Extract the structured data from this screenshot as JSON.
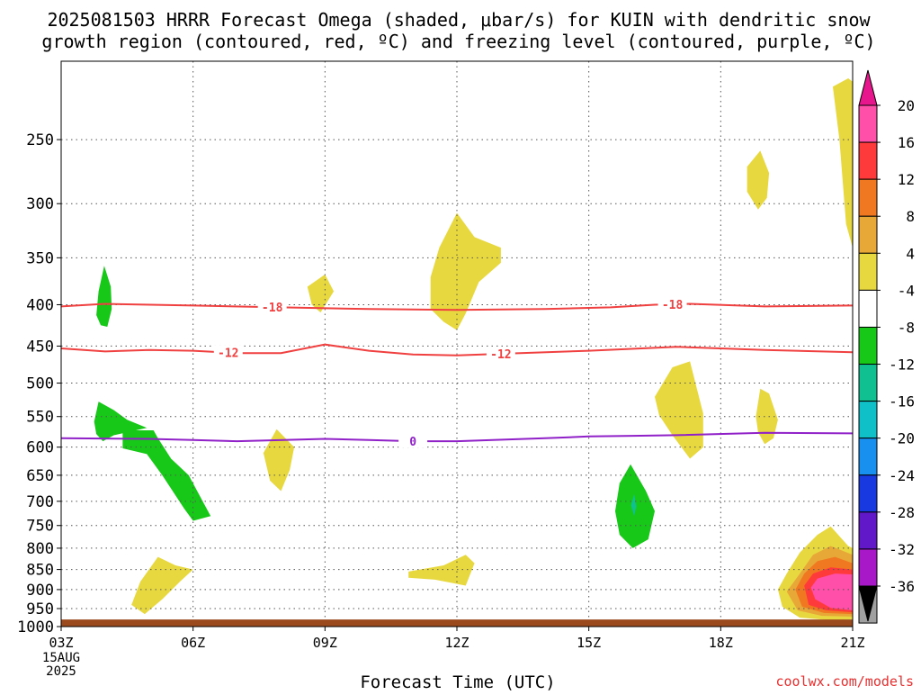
{
  "chart_data": {
    "type": "heatmap",
    "title_line1": "2025081503 HRRR Forecast Omega (shaded, μbar/s) for KUIN with dendritic snow",
    "title_line2": "growth region (contoured, red, ºC) and freezing level (contoured, purple, ºC)",
    "xlabel": "Forecast Time (UTC)",
    "ylabel": "",
    "credit": "coolwx.com/models",
    "x_ticks": [
      "03Z",
      "06Z",
      "09Z",
      "12Z",
      "15Z",
      "18Z",
      "21Z"
    ],
    "x_tick_hours": [
      3,
      6,
      9,
      12,
      15,
      18,
      21
    ],
    "x_date_lines": [
      "15AUG",
      "2025"
    ],
    "xlim_hours": [
      3,
      21
    ],
    "y_ticks": [
      250,
      300,
      350,
      400,
      450,
      500,
      550,
      600,
      650,
      700,
      750,
      800,
      850,
      900,
      950,
      1000
    ],
    "ylim_hPa": [
      1000,
      200
    ],
    "y_scale": "log-pressure",
    "grid": true,
    "ground_color": "#9b4a1e",
    "ground_top_hPa": 980,
    "colorbar": {
      "labels": [
        20,
        16,
        12,
        8,
        4,
        -4,
        -8,
        -12,
        -16,
        -20,
        -24,
        -28,
        -32,
        -36
      ],
      "colors": [
        "#ff4fa8",
        "#ff3a3a",
        "#f07820",
        "#e8a838",
        "#e8d840",
        "#ffffff",
        "#18c818",
        "#10c090",
        "#10c0c8",
        "#1890f0",
        "#1838e0",
        "#6018c8",
        "#a818c8",
        "#a0a0a0"
      ],
      "top_cap_color": "#e8168c",
      "bottom_cap_color": "#000000"
    },
    "contours": [
      {
        "label": "-18",
        "color": "#f04040",
        "label_hours": [
          7.8,
          16.9
        ],
        "points": [
          [
            3,
            402
          ],
          [
            4,
            399
          ],
          [
            6,
            401
          ],
          [
            8,
            403
          ],
          [
            10,
            405
          ],
          [
            12,
            406
          ],
          [
            14,
            405
          ],
          [
            15.5,
            403
          ],
          [
            16.5,
            400
          ],
          [
            17.3,
            399
          ],
          [
            19,
            402
          ],
          [
            21,
            401
          ]
        ]
      },
      {
        "label": "-12",
        "color": "#f04040",
        "label_hours": [
          6.8,
          13.0
        ],
        "points": [
          [
            3,
            453
          ],
          [
            4,
            457
          ],
          [
            5,
            455
          ],
          [
            6,
            456
          ],
          [
            7,
            459
          ],
          [
            8,
            459
          ],
          [
            9,
            448
          ],
          [
            10,
            456
          ],
          [
            11,
            461
          ],
          [
            12,
            462
          ],
          [
            13,
            460
          ],
          [
            15,
            456
          ],
          [
            17,
            451
          ],
          [
            19,
            455
          ],
          [
            21,
            458
          ]
        ]
      },
      {
        "label": "0",
        "color": "#9020c8",
        "label_hours": [
          11.0
        ],
        "points": [
          [
            3,
            585
          ],
          [
            5,
            586
          ],
          [
            6,
            588
          ],
          [
            7,
            590
          ],
          [
            9,
            586
          ],
          [
            10,
            588
          ],
          [
            11,
            590
          ],
          [
            12,
            590
          ],
          [
            14,
            585
          ],
          [
            15,
            582
          ],
          [
            16,
            581
          ],
          [
            17,
            580
          ],
          [
            19,
            576
          ],
          [
            21,
            577
          ]
        ]
      }
    ],
    "omega_regions": [
      {
        "value": "-4 to -8",
        "color": "#18c818",
        "points": [
          [
            3.8,
            412
          ],
          [
            3.85,
            385
          ],
          [
            3.98,
            358
          ],
          [
            4.13,
            380
          ],
          [
            4.15,
            405
          ],
          [
            4.05,
            426
          ],
          [
            3.9,
            424
          ]
        ]
      },
      {
        "value": "-4 to -8",
        "color": "#18c818",
        "points": [
          [
            3.75,
            558
          ],
          [
            3.85,
            527
          ],
          [
            4.2,
            540
          ],
          [
            4.5,
            555
          ],
          [
            4.95,
            568
          ],
          [
            4.2,
            580
          ],
          [
            3.95,
            590
          ],
          [
            3.8,
            578
          ]
        ]
      },
      {
        "value": "-4 to -8",
        "color": "#18c818",
        "points": [
          [
            4.4,
            572
          ],
          [
            5.1,
            572
          ],
          [
            5.2,
            585
          ],
          [
            5.5,
            620
          ],
          [
            5.9,
            650
          ],
          [
            6.4,
            730
          ],
          [
            6.0,
            740
          ],
          [
            5.8,
            715
          ],
          [
            5.3,
            650
          ],
          [
            4.95,
            612
          ],
          [
            4.4,
            602
          ]
        ]
      },
      {
        "value": "-4 to -8",
        "color": "#18c818",
        "points": [
          [
            15.6,
            720
          ],
          [
            15.7,
            665
          ],
          [
            15.95,
            630
          ],
          [
            16.3,
            680
          ],
          [
            16.5,
            720
          ],
          [
            16.35,
            780
          ],
          [
            16.0,
            800
          ],
          [
            15.7,
            770
          ]
        ]
      },
      {
        "value": "-8 to -12",
        "color": "#10c090",
        "points": [
          [
            15.96,
            708
          ],
          [
            16.03,
            686
          ],
          [
            16.08,
            710
          ],
          [
            16.03,
            730
          ]
        ]
      },
      {
        "value": "4 to 8",
        "color": "#e8d840",
        "points": [
          [
            4.8,
            880
          ],
          [
            5.2,
            820
          ],
          [
            5.6,
            840
          ],
          [
            6.0,
            850
          ],
          [
            5.7,
            880
          ],
          [
            5.3,
            925
          ],
          [
            4.9,
            965
          ],
          [
            4.6,
            940
          ]
        ]
      },
      {
        "value": "4 to 8",
        "color": "#e8d840",
        "points": [
          [
            7.6,
            610
          ],
          [
            7.9,
            570
          ],
          [
            8.3,
            600
          ],
          [
            8.2,
            640
          ],
          [
            8.0,
            680
          ],
          [
            7.75,
            660
          ]
        ]
      },
      {
        "value": "4 to 8",
        "color": "#e8d840",
        "points": [
          [
            8.6,
            380
          ],
          [
            9.0,
            367
          ],
          [
            9.2,
            385
          ],
          [
            8.9,
            409
          ],
          [
            8.7,
            400
          ]
        ]
      },
      {
        "value": "4 to 8",
        "color": "#e8d840",
        "points": [
          [
            11.4,
            370
          ],
          [
            11.6,
            340
          ],
          [
            12.0,
            308
          ],
          [
            12.4,
            330
          ],
          [
            13.0,
            340
          ],
          [
            13.0,
            355
          ],
          [
            12.5,
            375
          ],
          [
            12.2,
            410
          ],
          [
            12.0,
            430
          ],
          [
            11.7,
            420
          ],
          [
            11.4,
            405
          ]
        ]
      },
      {
        "value": "4 to 8",
        "color": "#e8d840",
        "points": [
          [
            10.9,
            855
          ],
          [
            11.7,
            840
          ],
          [
            12.2,
            815
          ],
          [
            12.4,
            835
          ],
          [
            12.2,
            890
          ],
          [
            11.5,
            875
          ],
          [
            10.9,
            870
          ]
        ]
      },
      {
        "value": "4 to 8",
        "color": "#e8d840",
        "points": [
          [
            16.5,
            520
          ],
          [
            16.9,
            478
          ],
          [
            17.3,
            470
          ],
          [
            17.6,
            545
          ],
          [
            17.6,
            600
          ],
          [
            17.3,
            620
          ],
          [
            16.9,
            580
          ],
          [
            16.6,
            548
          ]
        ]
      },
      {
        "value": "4 to 8",
        "color": "#e8d840",
        "points": [
          [
            18.6,
            270
          ],
          [
            18.9,
            258
          ],
          [
            19.1,
            275
          ],
          [
            19.05,
            295
          ],
          [
            18.85,
            305
          ],
          [
            18.6,
            290
          ]
        ]
      },
      {
        "value": "4 to 8",
        "color": "#e8d840",
        "points": [
          [
            18.8,
            550
          ],
          [
            18.9,
            508
          ],
          [
            19.1,
            515
          ],
          [
            19.3,
            555
          ],
          [
            19.2,
            585
          ],
          [
            19.0,
            595
          ],
          [
            18.85,
            575
          ]
        ]
      },
      {
        "value": "4 to 8",
        "color": "#e8d840",
        "points": [
          [
            20.55,
            215
          ],
          [
            20.9,
            210
          ],
          [
            21,
            212
          ],
          [
            21,
            340
          ],
          [
            20.85,
            318
          ],
          [
            20.7,
            250
          ]
        ]
      },
      {
        "value": "4 to 8",
        "color": "#e8d840",
        "points": [
          [
            19.3,
            900
          ],
          [
            19.5,
            860
          ],
          [
            19.8,
            810
          ],
          [
            20.2,
            770
          ],
          [
            20.5,
            752
          ],
          [
            20.9,
            795
          ],
          [
            21,
            800
          ],
          [
            21,
            980
          ],
          [
            20.5,
            982
          ],
          [
            19.8,
            975
          ],
          [
            19.4,
            945
          ]
        ]
      },
      {
        "value": "8 to 12",
        "color": "#e8a838",
        "points": [
          [
            19.5,
            905
          ],
          [
            19.8,
            860
          ],
          [
            20.1,
            815
          ],
          [
            20.5,
            795
          ],
          [
            21,
            815
          ],
          [
            21,
            972
          ],
          [
            20.3,
            970
          ],
          [
            19.75,
            955
          ]
        ]
      },
      {
        "value": "12 to 16",
        "color": "#f07820",
        "points": [
          [
            19.7,
            900
          ],
          [
            19.9,
            860
          ],
          [
            20.2,
            830
          ],
          [
            20.6,
            820
          ],
          [
            21,
            835
          ],
          [
            21,
            965
          ],
          [
            20.35,
            962
          ],
          [
            19.85,
            945
          ]
        ]
      },
      {
        "value": "16 to 20",
        "color": "#ff3a3a",
        "points": [
          [
            19.9,
            890
          ],
          [
            20.1,
            860
          ],
          [
            20.5,
            845
          ],
          [
            21,
            850
          ],
          [
            21,
            960
          ],
          [
            20.4,
            955
          ],
          [
            20.0,
            940
          ]
        ]
      },
      {
        "value": "20+",
        "color": "#ff4fa8",
        "points": [
          [
            20.05,
            895
          ],
          [
            20.2,
            872
          ],
          [
            20.6,
            860
          ],
          [
            21,
            862
          ],
          [
            21,
            955
          ],
          [
            20.5,
            948
          ],
          [
            20.15,
            925
          ]
        ]
      }
    ]
  }
}
